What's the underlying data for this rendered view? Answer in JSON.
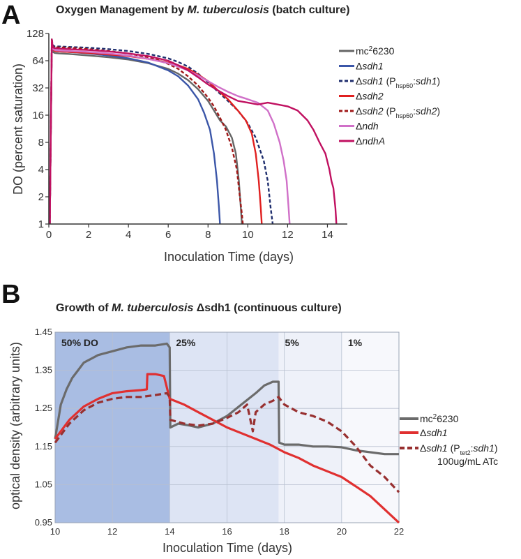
{
  "chart_data": [
    {
      "panel": "A",
      "type": "line",
      "title_prefix": "Oxygen Management by ",
      "title_italic": "M. tuberculosis",
      "title_suffix": " (batch culture)",
      "xlabel": "Inoculation Time (days)",
      "ylabel": "DO (percent saturation)",
      "xlim": [
        0,
        15
      ],
      "ylim": [
        1,
        128
      ],
      "yscale": "log2",
      "xticks": [
        "0",
        "2",
        "4",
        "6",
        "8",
        "10",
        "12",
        "14"
      ],
      "yticks": [
        "1",
        "2",
        "4",
        "8",
        "16",
        "32",
        "64",
        "128"
      ],
      "legend_position": "right",
      "series": [
        {
          "name": "mc²6230",
          "legend_html": "mc<tspan baseline-shift='super' font-size='10'>2</tspan>6230",
          "color": "#666666",
          "dash": false,
          "x": [
            0.05,
            0.15,
            0.2,
            0.3,
            0.5,
            1,
            2,
            3,
            4,
            5,
            6,
            6.5,
            7,
            7.5,
            8,
            8.3,
            8.6,
            8.9,
            9.2,
            9.4,
            9.55,
            9.65,
            9.7
          ],
          "y": [
            1,
            100,
            80,
            78,
            77,
            76,
            73,
            70,
            66,
            60,
            52,
            46,
            39,
            31,
            23,
            18,
            14,
            12,
            9,
            6,
            3,
            1.5,
            1
          ]
        },
        {
          "name": "Δsdh1",
          "legend_html": "Δ<tspan font-style='italic'>sdh1</tspan>",
          "color": "#3b56a8",
          "dash": false,
          "x": [
            0.05,
            0.15,
            0.2,
            0.3,
            0.5,
            1,
            2,
            3,
            4,
            5,
            6,
            6.5,
            7,
            7.5,
            7.8,
            8.1,
            8.3,
            8.45,
            8.55,
            8.6
          ],
          "y": [
            1,
            100,
            84,
            82,
            81,
            80,
            77,
            73,
            68,
            61,
            50,
            43,
            34,
            24,
            17,
            11,
            6,
            3,
            1.5,
            1
          ]
        },
        {
          "name": "Δsdh1 (Phsp60:sdh1)",
          "legend_html": "Δ<tspan font-style='italic'>sdh1</tspan> (P<tspan baseline-shift='sub' font-size='9'>hsp60</tspan>:<tspan font-style='italic'>sdh1</tspan>)",
          "color": "#1f2e6e",
          "dash": true,
          "x": [
            0.05,
            0.15,
            0.2,
            0.3,
            0.5,
            1,
            2,
            3,
            4,
            5,
            6,
            6.5,
            7,
            7.5,
            8,
            8.5,
            9,
            9.5,
            10,
            10.4,
            10.8,
            11,
            11.15,
            11.25
          ],
          "y": [
            1,
            110,
            95,
            92,
            92,
            91,
            89,
            86,
            82,
            76,
            68,
            62,
            55,
            46,
            37,
            29,
            23,
            18,
            13,
            9,
            5,
            3,
            1.5,
            1
          ]
        },
        {
          "name": "Δsdh2",
          "legend_html": "Δ<tspan font-style='italic'>sdh2</tspan>",
          "color": "#e02020",
          "dash": false,
          "x": [
            0.05,
            0.15,
            0.2,
            0.3,
            0.5,
            1,
            2,
            3,
            4,
            5,
            6,
            6.5,
            7,
            7.5,
            8,
            8.5,
            9,
            9.5,
            9.9,
            10.2,
            10.4,
            10.55,
            10.65,
            10.7
          ],
          "y": [
            1,
            100,
            85,
            82,
            81,
            80,
            78,
            75,
            72,
            67,
            61,
            57,
            52,
            45,
            38,
            30,
            24,
            18,
            14,
            10,
            6,
            3,
            1.5,
            1
          ]
        },
        {
          "name": "Δsdh2 (Phsp60:sdh2)",
          "legend_html": "Δ<tspan font-style='italic'>sdh2</tspan> (P<tspan baseline-shift='sub' font-size='9'>hsp60</tspan>:<tspan font-style='italic'>sdh2</tspan>)",
          "color": "#a01818",
          "dash": true,
          "x": [
            0.05,
            0.15,
            0.2,
            0.3,
            0.5,
            1,
            2,
            3,
            4,
            5,
            5.5,
            6,
            6.5,
            7,
            7.5,
            8,
            8.3,
            8.6,
            8.9,
            9.2,
            9.45,
            9.6,
            9.7,
            9.75
          ],
          "y": [
            1,
            110,
            92,
            90,
            90,
            89,
            86,
            82,
            77,
            70,
            65,
            59,
            52,
            43,
            34,
            25,
            20,
            15,
            11,
            7,
            4,
            2,
            1.3,
            1
          ]
        },
        {
          "name": "Δndh",
          "legend_html": "Δ<tspan font-style='italic'>ndh</tspan>",
          "color": "#d070c8",
          "dash": false,
          "x": [
            0.05,
            0.15,
            0.2,
            0.3,
            0.5,
            1,
            2,
            3,
            4,
            5,
            6,
            6.5,
            7,
            7.5,
            8,
            8.5,
            9,
            9.5,
            10,
            10.5,
            11,
            11.3,
            11.6,
            11.8,
            11.95,
            12.05,
            12.1
          ],
          "y": [
            1,
            100,
            86,
            84,
            83,
            82,
            80,
            77,
            73,
            67,
            60,
            55,
            50,
            44,
            38,
            33,
            29,
            26,
            24,
            22,
            18,
            13,
            8,
            5,
            3,
            1.5,
            1
          ]
        },
        {
          "name": "ΔndhA",
          "legend_html": "Δ<tspan font-style='italic'>ndhA</tspan>",
          "color": "#c01060",
          "dash": false,
          "x": [
            0.05,
            0.15,
            0.2,
            0.3,
            0.5,
            1,
            2,
            3,
            4,
            5,
            6,
            6.5,
            7,
            7.5,
            8,
            8.5,
            9,
            9.5,
            10,
            10.5,
            11,
            11.5,
            12,
            12.5,
            13,
            13.3,
            13.6,
            13.9,
            14.1,
            14.2,
            14.3,
            14.4,
            14.45
          ],
          "y": [
            1,
            110,
            90,
            88,
            87,
            86,
            84,
            81,
            77,
            72,
            64,
            57,
            50,
            42,
            35,
            30,
            26,
            23,
            22,
            21,
            22,
            21,
            20,
            18,
            14,
            11,
            8,
            6,
            4,
            3,
            2.5,
            1.5,
            1
          ]
        }
      ]
    },
    {
      "panel": "B",
      "type": "line",
      "title_prefix": "Growth of ",
      "title_italic": "M. tuberculosis",
      "title_suffix": " Δsdh1 (continuous culture)",
      "xlabel": "Inoculation Time (days)",
      "ylabel": "optical density (arbitrary units)",
      "xlim": [
        10,
        22
      ],
      "ylim": [
        0.95,
        1.45
      ],
      "xticks": [
        "10",
        "12",
        "14",
        "16",
        "18",
        "20",
        "22"
      ],
      "yticks": [
        "0.95",
        "1.05",
        "1.15",
        "1.25",
        "1.35",
        "1.45"
      ],
      "phases": [
        {
          "label": "50% DO",
          "x0": 10,
          "x1": 14,
          "color": "#a9bde3"
        },
        {
          "label": "25%",
          "x0": 14,
          "x1": 17.8,
          "color": "#dde4f4"
        },
        {
          "label": "5%",
          "x0": 17.8,
          "x1": 20,
          "color": "#eef1f9"
        },
        {
          "label": "1%",
          "x0": 20,
          "x1": 22,
          "color": "#f7f8fc"
        }
      ],
      "legend_position": "right",
      "series": [
        {
          "name": "mc²6230",
          "legend_html": "mc<tspan baseline-shift='super' font-size='10'>2</tspan>6230",
          "color": "#6b6b6b",
          "dash": false,
          "x": [
            10,
            10.2,
            10.4,
            10.6,
            10.8,
            11,
            11.5,
            12,
            12.5,
            13,
            13.5,
            13.9,
            14.0,
            14.02,
            14.3,
            14.7,
            15,
            15.5,
            16,
            16.5,
            17,
            17.3,
            17.6,
            17.8,
            17.82,
            18,
            18.5,
            19,
            19.5,
            20,
            20.5,
            21,
            21.5,
            22
          ],
          "y": [
            1.17,
            1.26,
            1.3,
            1.33,
            1.35,
            1.37,
            1.39,
            1.4,
            1.41,
            1.415,
            1.415,
            1.42,
            1.41,
            1.2,
            1.21,
            1.205,
            1.2,
            1.21,
            1.23,
            1.26,
            1.29,
            1.31,
            1.32,
            1.32,
            1.16,
            1.155,
            1.155,
            1.15,
            1.15,
            1.148,
            1.14,
            1.135,
            1.13,
            1.13
          ]
        },
        {
          "name": "Δsdh1",
          "legend_html": "Δ<tspan font-style='italic'>sdh1</tspan>",
          "color": "#e03030",
          "dash": false,
          "x": [
            10,
            10.5,
            11,
            11.5,
            12,
            12.5,
            13,
            13.2,
            13.22,
            13.5,
            13.8,
            14,
            14.5,
            15,
            15.5,
            16,
            16.5,
            17,
            17.5,
            18,
            18.5,
            19,
            19.5,
            20,
            20.5,
            21,
            21.5,
            22
          ],
          "y": [
            1.17,
            1.22,
            1.255,
            1.275,
            1.29,
            1.295,
            1.298,
            1.3,
            1.34,
            1.34,
            1.335,
            1.275,
            1.26,
            1.24,
            1.22,
            1.2,
            1.185,
            1.17,
            1.155,
            1.135,
            1.12,
            1.1,
            1.085,
            1.07,
            1.045,
            1.02,
            0.985,
            0.95
          ]
        },
        {
          "name": "Δsdh1 (Ptet2:sdh1) 100ug/mL ATc",
          "legend_html": "Δ<tspan font-style='italic'>sdh1</tspan> (P<tspan baseline-shift='sub' font-size='9'>tet2</tspan>:<tspan font-style='italic'>sdh1</tspan>)",
          "legend_line2": "100ug/mL ATc",
          "color": "#983030",
          "dash": true,
          "x": [
            10,
            10.5,
            11,
            11.5,
            12,
            12.5,
            13,
            13.5,
            13.9,
            14,
            14.02,
            14.5,
            15,
            15.5,
            16,
            16.4,
            16.7,
            16.9,
            17.0,
            17.3,
            17.6,
            17.8,
            18,
            18.5,
            19,
            19.5,
            20,
            20.5,
            21,
            21.5,
            22
          ],
          "y": [
            1.16,
            1.21,
            1.245,
            1.265,
            1.275,
            1.28,
            1.28,
            1.285,
            1.29,
            1.28,
            1.22,
            1.21,
            1.205,
            1.21,
            1.225,
            1.24,
            1.26,
            1.19,
            1.24,
            1.26,
            1.27,
            1.28,
            1.26,
            1.24,
            1.23,
            1.215,
            1.19,
            1.15,
            1.1,
            1.07,
            1.03
          ]
        }
      ]
    }
  ]
}
